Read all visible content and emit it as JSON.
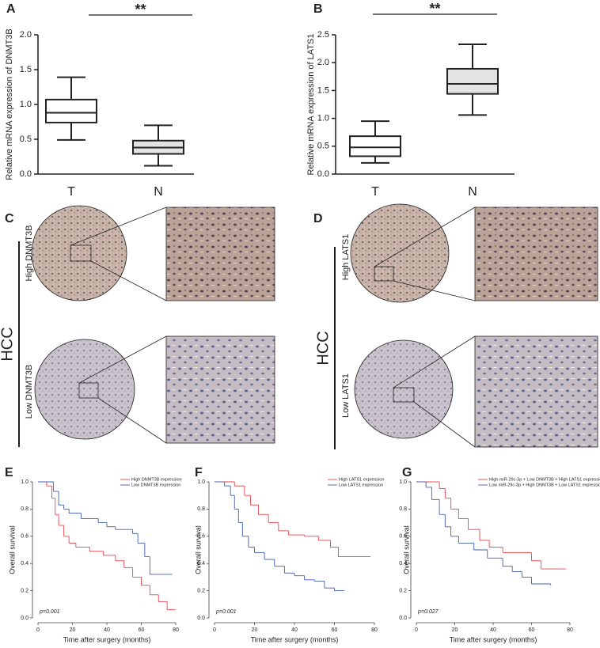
{
  "panels": {
    "labels": [
      "A",
      "B",
      "C",
      "D",
      "E",
      "F",
      "G"
    ]
  },
  "ihc": [
    {
      "group": "HCC",
      "high": "High DNMT3B",
      "low": "Low DNMT3B"
    },
    {
      "group": "HCC",
      "high": "High LATS1",
      "low": "Low LATS1"
    }
  ],
  "chart_data": [
    {
      "type": "box",
      "ylabel": "Relative mRNA expression of DNMT3B",
      "categories": [
        "T",
        "N"
      ],
      "boxes": [
        {
          "min": 0.49,
          "q1": 0.74,
          "median": 0.88,
          "q3": 1.07,
          "max": 1.39,
          "color": "#ffffff"
        },
        {
          "min": 0.12,
          "q1": 0.29,
          "median": 0.38,
          "q3": 0.48,
          "max": 0.7,
          "color": "#e3e3e3"
        }
      ],
      "ylim": [
        0,
        2
      ],
      "yticks": [
        {
          "value": 0,
          "label": "0.0"
        },
        0.5,
        {
          "value": 1,
          "label": "1.0"
        },
        1.5,
        {
          "value": 2,
          "label": "2.0"
        }
      ],
      "annotation": "**"
    },
    {
      "type": "box",
      "ylabel": "Relative mRNA expression of LATS1",
      "categories": [
        "T",
        "N"
      ],
      "boxes": [
        {
          "min": 0.2,
          "q1": 0.32,
          "median": 0.48,
          "q3": 0.68,
          "max": 0.95,
          "color": "#ffffff"
        },
        {
          "min": 1.06,
          "q1": 1.44,
          "median": 1.62,
          "q3": 1.89,
          "max": 2.33,
          "color": "#e3e3e3"
        }
      ],
      "ylim": [
        0,
        2.5
      ],
      "yticks": [
        {
          "value": 0,
          "label": "0.0"
        },
        0.5,
        {
          "value": 1,
          "label": "1.0"
        },
        1.5,
        {
          "value": 2,
          "label": "2.0"
        },
        2.5
      ],
      "annotation": "**"
    },
    {
      "type": "line",
      "xlabel": "Time after surgery (months)",
      "ylabel": "Overall survival",
      "xlim": [
        0,
        80
      ],
      "xticks": [
        0,
        20,
        40,
        60,
        80
      ],
      "ylim": [
        0,
        1
      ],
      "yticks": [
        {
          "value": 0,
          "label": "0.0"
        },
        0.2,
        0.4,
        0.6,
        0.8,
        {
          "value": 1,
          "label": "1.0"
        }
      ],
      "legend": "upper right",
      "annotation": "p=0.001",
      "series": [
        {
          "name": "High DNMT3B expression",
          "color": "#e8434b",
          "x": [
            0,
            5,
            8,
            10,
            12,
            15,
            18,
            22,
            30,
            38,
            45,
            50,
            55,
            60,
            65,
            70,
            75,
            80
          ],
          "values": [
            1,
            0.97,
            0.88,
            0.76,
            0.68,
            0.6,
            0.55,
            0.52,
            0.49,
            0.46,
            0.42,
            0.37,
            0.3,
            0.24,
            0.17,
            0.12,
            0.06,
            0.06
          ]
        },
        {
          "name": "Low DNMT3B expression",
          "color": "#3f5fb3",
          "x": [
            0,
            9,
            12,
            15,
            18,
            25,
            35,
            40,
            45,
            55,
            58,
            62,
            65,
            78
          ],
          "values": [
            1,
            0.93,
            0.83,
            0.8,
            0.77,
            0.73,
            0.7,
            0.67,
            0.65,
            0.62,
            0.55,
            0.45,
            0.32,
            0.32
          ]
        }
      ]
    },
    {
      "type": "line",
      "xlabel": "Time after surgery (months)",
      "ylabel": "Overall survival",
      "xlim": [
        0,
        80
      ],
      "xticks": [
        0,
        20,
        40,
        60,
        80
      ],
      "ylim": [
        0,
        1
      ],
      "yticks": [
        {
          "value": 0,
          "label": "0.0"
        },
        0.2,
        0.4,
        0.6,
        0.8,
        {
          "value": 1,
          "label": "1.0"
        }
      ],
      "legend": "upper right",
      "annotation": "p=0.001",
      "series": [
        {
          "name": "High LATS1 expression",
          "color": "#e8434b",
          "x": [
            0,
            10,
            15,
            18,
            22,
            27,
            32,
            37,
            45,
            52,
            58,
            62,
            78
          ],
          "values": [
            1,
            0.97,
            0.9,
            0.83,
            0.76,
            0.7,
            0.64,
            0.61,
            0.6,
            0.57,
            0.52,
            0.45,
            0.45
          ]
        },
        {
          "name": "Low LATS1 expression",
          "color": "#3f5fb3",
          "x": [
            0,
            5,
            8,
            10,
            12,
            14,
            17,
            20,
            25,
            30,
            35,
            40,
            45,
            50,
            55,
            60,
            65
          ],
          "values": [
            1,
            0.97,
            0.9,
            0.8,
            0.7,
            0.6,
            0.52,
            0.48,
            0.43,
            0.38,
            0.33,
            0.31,
            0.28,
            0.27,
            0.22,
            0.2,
            0.2
          ]
        }
      ]
    },
    {
      "type": "line",
      "xlabel": "Time after surgery (months)",
      "ylabel": "Overall survival",
      "xlim": [
        0,
        80
      ],
      "xticks": [
        0,
        20,
        40,
        60,
        80
      ],
      "ylim": [
        0,
        1
      ],
      "yticks": [
        {
          "value": 0,
          "label": "0.0"
        },
        0.2,
        0.4,
        0.6,
        0.8,
        {
          "value": 1,
          "label": "1.0"
        }
      ],
      "legend": "upper right",
      "annotation": "p=0.027",
      "series": [
        {
          "name": "High miR-29c-3p + Low DNMT3B + High LATS1 expression",
          "color": "#e8434b",
          "x": [
            0,
            8,
            12,
            15,
            18,
            22,
            27,
            33,
            38,
            45,
            60,
            65,
            78
          ],
          "values": [
            1,
            1,
            0.95,
            0.88,
            0.8,
            0.73,
            0.65,
            0.57,
            0.52,
            0.48,
            0.42,
            0.36,
            0.36
          ]
        },
        {
          "name": "Low miR-29c-3p + High DNMT3B + Low LATS1 expression",
          "color": "#3f5fb3",
          "x": [
            0,
            5,
            8,
            12,
            15,
            18,
            22,
            30,
            37,
            45,
            50,
            55,
            60,
            70
          ],
          "values": [
            1,
            0.96,
            0.87,
            0.76,
            0.67,
            0.6,
            0.55,
            0.5,
            0.44,
            0.38,
            0.34,
            0.3,
            0.25,
            0.24
          ]
        }
      ]
    }
  ]
}
